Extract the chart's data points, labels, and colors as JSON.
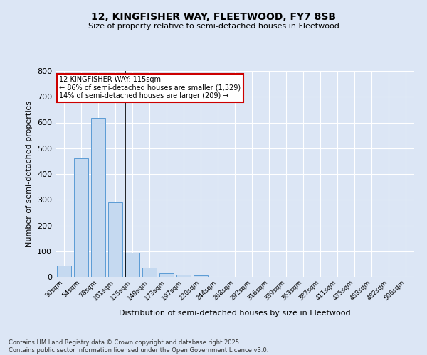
{
  "title1": "12, KINGFISHER WAY, FLEETWOOD, FY7 8SB",
  "title2": "Size of property relative to semi-detached houses in Fleetwood",
  "xlabel": "Distribution of semi-detached houses by size in Fleetwood",
  "ylabel": "Number of semi-detached properties",
  "categories": [
    "30sqm",
    "54sqm",
    "78sqm",
    "101sqm",
    "125sqm",
    "149sqm",
    "173sqm",
    "197sqm",
    "220sqm",
    "244sqm",
    "268sqm",
    "292sqm",
    "316sqm",
    "339sqm",
    "363sqm",
    "387sqm",
    "411sqm",
    "435sqm",
    "458sqm",
    "482sqm",
    "506sqm"
  ],
  "values": [
    45,
    460,
    617,
    290,
    93,
    35,
    14,
    8,
    5,
    0,
    0,
    0,
    0,
    0,
    0,
    0,
    0,
    0,
    0,
    0,
    0
  ],
  "bar_color": "#c5d9f0",
  "bar_edge_color": "#5b9bd5",
  "vline_color": "#000000",
  "annotation_title": "12 KINGFISHER WAY: 115sqm",
  "annotation_line1": "← 86% of semi-detached houses are smaller (1,329)",
  "annotation_line2": "14% of semi-detached houses are larger (209) →",
  "annotation_box_color": "#ffffff",
  "annotation_edge_color": "#cc0000",
  "ylim": [
    0,
    800
  ],
  "yticks": [
    0,
    100,
    200,
    300,
    400,
    500,
    600,
    700,
    800
  ],
  "footer1": "Contains HM Land Registry data © Crown copyright and database right 2025.",
  "footer2": "Contains public sector information licensed under the Open Government Licence v3.0.",
  "bg_color": "#dce6f5",
  "plot_bg_color": "#dce6f5"
}
